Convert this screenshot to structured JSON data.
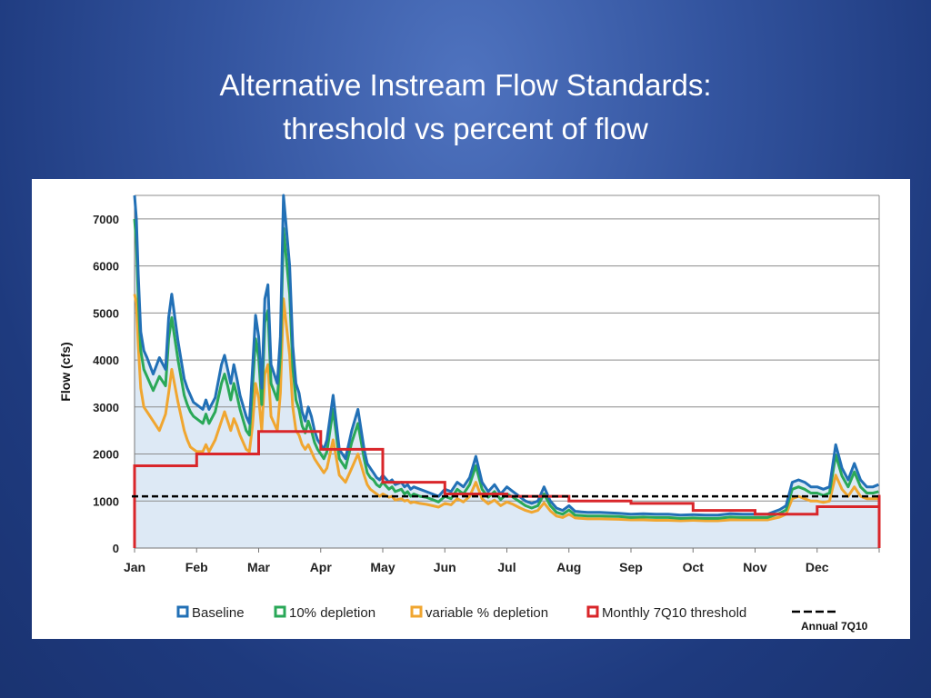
{
  "slide": {
    "title_line1": "Alternative Instream Flow Standards:",
    "title_line2": "threshold vs percent of flow"
  },
  "chart_data": {
    "type": "line",
    "title": "",
    "xlabel": "",
    "ylabel": "Flow (cfs)",
    "xlim": [
      0,
      12
    ],
    "ylim": [
      0,
      7500
    ],
    "grid": true,
    "legend_position": "bottom",
    "y_ticks": [
      0,
      1000,
      2000,
      3000,
      4000,
      5000,
      6000,
      7000
    ],
    "month_labels": [
      "Jan",
      "Feb",
      "Mar",
      "Apr",
      "May",
      "Jun",
      "Jul",
      "Aug",
      "Sep",
      "Oct",
      "Nov",
      "Dec"
    ],
    "colors": {
      "baseline": "#2270b6",
      "depletion10": "#2aa858",
      "variable": "#f0a630",
      "threshold": "#d9262a",
      "annual": "#000000",
      "fill": "#dde9f5"
    },
    "series": [
      {
        "name": "Baseline",
        "key": "baseline",
        "x": [
          0,
          0.03,
          0.06,
          0.1,
          0.15,
          0.2,
          0.3,
          0.4,
          0.5,
          0.55,
          0.6,
          0.7,
          0.8,
          0.85,
          0.9,
          0.95,
          1.0,
          1.1,
          1.15,
          1.2,
          1.3,
          1.4,
          1.45,
          1.5,
          1.55,
          1.6,
          1.65,
          1.7,
          1.8,
          1.85,
          1.9,
          1.95,
          2.0,
          2.05,
          2.1,
          2.15,
          2.2,
          2.3,
          2.35,
          2.4,
          2.5,
          2.55,
          2.6,
          2.65,
          2.7,
          2.75,
          2.8,
          2.85,
          2.9,
          2.95,
          3.0,
          3.05,
          3.1,
          3.2,
          3.3,
          3.4,
          3.5,
          3.6,
          3.7,
          3.75,
          3.8,
          3.85,
          3.9,
          3.95,
          4.0,
          4.1,
          4.15,
          4.2,
          4.3,
          4.35,
          4.4,
          4.45,
          4.5,
          4.6,
          4.7,
          4.8,
          4.9,
          5.0,
          5.1,
          5.2,
          5.3,
          5.4,
          5.5,
          5.6,
          5.7,
          5.8,
          5.9,
          6.0,
          6.1,
          6.2,
          6.3,
          6.4,
          6.5,
          6.6,
          6.7,
          6.8,
          6.9,
          7.0,
          7.1,
          7.2,
          7.3,
          7.5,
          7.8,
          8.0,
          8.2,
          8.4,
          8.6,
          8.8,
          9.0,
          9.2,
          9.4,
          9.6,
          9.8,
          10.0,
          10.2,
          10.4,
          10.5,
          10.6,
          10.7,
          10.8,
          10.9,
          11.0,
          11.1,
          11.2,
          11.3,
          11.4,
          11.5,
          11.6,
          11.7,
          11.8,
          11.9,
          11.99
        ],
        "values": [
          7500,
          7000,
          5800,
          4600,
          4200,
          4050,
          3700,
          4050,
          3800,
          4900,
          5400,
          4400,
          3600,
          3400,
          3250,
          3100,
          3050,
          2950,
          3150,
          2950,
          3200,
          3900,
          4100,
          3800,
          3500,
          3900,
          3600,
          3250,
          2800,
          2650,
          3800,
          4950,
          4500,
          3400,
          5300,
          5600,
          3900,
          3500,
          4500,
          7500,
          6000,
          4300,
          3500,
          3300,
          2900,
          2700,
          3000,
          2800,
          2500,
          2300,
          2200,
          2100,
          2300,
          3250,
          2100,
          1900,
          2500,
          2950,
          2100,
          1800,
          1700,
          1600,
          1500,
          1450,
          1550,
          1400,
          1450,
          1350,
          1400,
          1300,
          1350,
          1250,
          1300,
          1250,
          1200,
          1150,
          1100,
          1250,
          1200,
          1400,
          1300,
          1500,
          1950,
          1400,
          1200,
          1350,
          1150,
          1300,
          1200,
          1100,
          1000,
          950,
          1000,
          1300,
          1000,
          850,
          800,
          900,
          780,
          770,
          760,
          760,
          740,
          720,
          730,
          720,
          720,
          700,
          710,
          700,
          700,
          730,
          720,
          720,
          720,
          820,
          900,
          1400,
          1450,
          1400,
          1300,
          1300,
          1250,
          1300,
          2200,
          1700,
          1450,
          1800,
          1450,
          1300,
          1300,
          1350
        ]
      },
      {
        "name": "10% depletion",
        "key": "depletion10",
        "x": [
          0,
          0.03,
          0.06,
          0.1,
          0.15,
          0.2,
          0.3,
          0.4,
          0.5,
          0.55,
          0.6,
          0.7,
          0.8,
          0.85,
          0.9,
          0.95,
          1.0,
          1.1,
          1.15,
          1.2,
          1.3,
          1.4,
          1.45,
          1.5,
          1.55,
          1.6,
          1.65,
          1.7,
          1.8,
          1.85,
          1.9,
          1.95,
          2.0,
          2.05,
          2.1,
          2.15,
          2.2,
          2.3,
          2.35,
          2.4,
          2.5,
          2.55,
          2.6,
          2.65,
          2.7,
          2.75,
          2.8,
          2.85,
          2.9,
          2.95,
          3.0,
          3.05,
          3.1,
          3.2,
          3.3,
          3.4,
          3.5,
          3.6,
          3.7,
          3.75,
          3.8,
          3.85,
          3.9,
          3.95,
          4.0,
          4.1,
          4.15,
          4.2,
          4.3,
          4.35,
          4.4,
          4.45,
          4.5,
          4.6,
          4.7,
          4.8,
          4.9,
          5.0,
          5.1,
          5.2,
          5.3,
          5.4,
          5.5,
          5.6,
          5.7,
          5.8,
          5.9,
          6.0,
          6.1,
          6.2,
          6.3,
          6.4,
          6.5,
          6.6,
          6.7,
          6.8,
          6.9,
          7.0,
          7.1,
          7.2,
          7.3,
          7.5,
          7.8,
          8.0,
          8.2,
          8.4,
          8.6,
          8.8,
          9.0,
          9.2,
          9.4,
          9.6,
          9.8,
          10.0,
          10.2,
          10.4,
          10.5,
          10.6,
          10.7,
          10.8,
          10.9,
          11.0,
          11.1,
          11.2,
          11.3,
          11.4,
          11.5,
          11.6,
          11.7,
          11.8,
          11.9,
          11.99
        ],
        "values": [
          7000,
          6500,
          5300,
          4200,
          3800,
          3650,
          3350,
          3650,
          3450,
          4450,
          4900,
          4000,
          3250,
          3050,
          2900,
          2800,
          2750,
          2650,
          2850,
          2650,
          2900,
          3500,
          3700,
          3450,
          3150,
          3500,
          3250,
          2950,
          2500,
          2400,
          3400,
          4450,
          4050,
          3050,
          4800,
          5050,
          3500,
          3150,
          4100,
          6800,
          5400,
          3850,
          3150,
          2950,
          2600,
          2450,
          2700,
          2500,
          2250,
          2100,
          2000,
          1900,
          2050,
          2950,
          1900,
          1700,
          2250,
          2650,
          1900,
          1600,
          1500,
          1450,
          1350,
          1300,
          1400,
          1250,
          1300,
          1200,
          1250,
          1150,
          1200,
          1100,
          1150,
          1100,
          1080,
          1030,
          980,
          1100,
          1050,
          1250,
          1150,
          1350,
          1750,
          1250,
          1080,
          1200,
          1030,
          1150,
          1080,
          990,
          900,
          850,
          900,
          1150,
          900,
          760,
          720,
          810,
          700,
          690,
          680,
          680,
          670,
          650,
          660,
          650,
          650,
          630,
          640,
          630,
          630,
          660,
          650,
          650,
          650,
          740,
          810,
          1250,
          1300,
          1250,
          1170,
          1170,
          1120,
          1170,
          1980,
          1530,
          1300,
          1620,
          1300,
          1170,
          1170,
          1200
        ]
      },
      {
        "name": "variable % depletion",
        "key": "variable",
        "x": [
          0,
          0.03,
          0.06,
          0.1,
          0.15,
          0.2,
          0.3,
          0.4,
          0.5,
          0.55,
          0.6,
          0.7,
          0.8,
          0.85,
          0.9,
          0.95,
          1.0,
          1.1,
          1.15,
          1.2,
          1.3,
          1.4,
          1.45,
          1.5,
          1.55,
          1.6,
          1.65,
          1.7,
          1.8,
          1.85,
          1.9,
          1.95,
          2.0,
          2.05,
          2.1,
          2.15,
          2.2,
          2.3,
          2.35,
          2.4,
          2.5,
          2.55,
          2.6,
          2.65,
          2.7,
          2.75,
          2.8,
          2.85,
          2.9,
          2.95,
          3.0,
          3.05,
          3.1,
          3.2,
          3.3,
          3.4,
          3.5,
          3.6,
          3.7,
          3.75,
          3.8,
          3.85,
          3.9,
          3.95,
          4.0,
          4.1,
          4.15,
          4.2,
          4.3,
          4.35,
          4.4,
          4.45,
          4.5,
          4.6,
          4.7,
          4.8,
          4.9,
          5.0,
          5.1,
          5.2,
          5.3,
          5.4,
          5.5,
          5.6,
          5.7,
          5.8,
          5.9,
          6.0,
          6.1,
          6.2,
          6.3,
          6.4,
          6.5,
          6.6,
          6.7,
          6.8,
          6.9,
          7.0,
          7.1,
          7.2,
          7.3,
          7.5,
          7.8,
          8.0,
          8.2,
          8.4,
          8.6,
          8.8,
          9.0,
          9.2,
          9.4,
          9.6,
          9.8,
          10.0,
          10.2,
          10.4,
          10.5,
          10.6,
          10.7,
          10.8,
          10.9,
          11.0,
          11.1,
          11.2,
          11.3,
          11.4,
          11.5,
          11.6,
          11.7,
          11.8,
          11.99
        ],
        "values": [
          5400,
          5200,
          4300,
          3400,
          3000,
          2900,
          2700,
          2500,
          2850,
          3300,
          3800,
          3100,
          2500,
          2300,
          2150,
          2100,
          2050,
          2050,
          2200,
          2050,
          2300,
          2700,
          2900,
          2700,
          2500,
          2750,
          2600,
          2400,
          2100,
          2050,
          2600,
          3500,
          3200,
          2500,
          3700,
          3900,
          2800,
          2500,
          3300,
          5300,
          4100,
          3000,
          2500,
          2400,
          2200,
          2100,
          2200,
          2050,
          1900,
          1800,
          1700,
          1600,
          1700,
          2300,
          1550,
          1400,
          1700,
          2000,
          1550,
          1350,
          1250,
          1200,
          1150,
          1100,
          1150,
          1080,
          1100,
          1020,
          1050,
          1000,
          1020,
          960,
          980,
          950,
          930,
          900,
          870,
          950,
          920,
          1050,
          980,
          1100,
          1400,
          1050,
          940,
          1020,
          900,
          980,
          930,
          860,
          800,
          760,
          800,
          960,
          790,
          680,
          650,
          720,
          640,
          630,
          620,
          620,
          610,
          600,
          600,
          590,
          590,
          580,
          590,
          580,
          580,
          600,
          600,
          600,
          600,
          660,
          720,
          1050,
          1100,
          1050,
          1000,
          1000,
          970,
          1000,
          1550,
          1250,
          1100,
          1300,
          1100,
          1050,
          1050
        ]
      },
      {
        "name": "Monthly 7Q10 threshold",
        "key": "threshold",
        "step": true,
        "x": [
          0,
          1,
          2,
          3,
          4,
          5,
          6,
          7,
          8,
          9,
          10,
          11,
          12
        ],
        "values": [
          1750,
          2000,
          2480,
          2100,
          1400,
          1150,
          1100,
          1000,
          950,
          800,
          720,
          880,
          1130
        ]
      },
      {
        "name": "Annual 7Q10",
        "key": "annual",
        "dashed": true,
        "x": [
          0,
          12
        ],
        "values": [
          1100,
          1100
        ]
      }
    ],
    "legend": [
      {
        "label": "Baseline",
        "key": "baseline"
      },
      {
        "label": "10% depletion",
        "key": "depletion10"
      },
      {
        "label": "variable % depletion",
        "key": "variable"
      },
      {
        "label": "Monthly 7Q10 threshold",
        "key": "threshold"
      },
      {
        "label": "Annual 7Q10",
        "key": "annual"
      }
    ]
  }
}
